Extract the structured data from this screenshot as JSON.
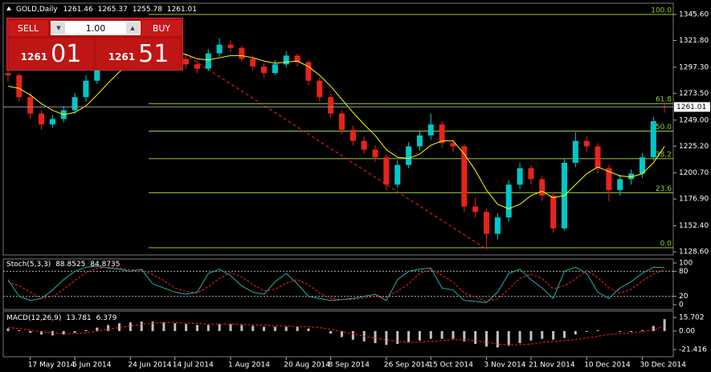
{
  "header": {
    "symbol": "GOLD,Daily"
  },
  "trade_panel": {
    "sell": "SELL",
    "buy": "BUY",
    "lots": "1.00",
    "bid": {
      "prefix": "1261",
      "digits": "01"
    },
    "ask": {
      "prefix": "1261",
      "digits": "51"
    }
  },
  "chart_data": {
    "type": "candlestick",
    "categories": [
      null,
      null,
      "17 May 2014",
      null,
      null,
      null,
      "5 Jun 2014",
      null,
      null,
      null,
      null,
      "24 Jun 2014",
      null,
      null,
      null,
      "14 Jul 2014",
      null,
      null,
      null,
      null,
      "1 Aug 2014",
      null,
      null,
      null,
      null,
      "20 Aug 2014",
      null,
      null,
      null,
      "8 Sep 2014",
      null,
      null,
      null,
      null,
      "26 Sep 2014",
      null,
      null,
      null,
      "15 Oct 2014",
      null,
      null,
      null,
      null,
      "3 Nov 2014",
      null,
      null,
      null,
      "21 Nov 2014",
      null,
      null,
      null,
      null,
      "10 Dec 2014",
      null,
      null,
      null,
      null,
      "30 Dec 2014",
      null,
      null
    ],
    "candles": [
      [
        1292,
        1296,
        1284,
        1290
      ],
      [
        1290,
        1292,
        1266,
        1270
      ],
      [
        1270,
        1274,
        1250,
        1255
      ],
      [
        1255,
        1258,
        1240,
        1245
      ],
      [
        1245,
        1254,
        1242,
        1250
      ],
      [
        1250,
        1262,
        1247,
        1258
      ],
      [
        1258,
        1274,
        1255,
        1270
      ],
      [
        1270,
        1290,
        1266,
        1285
      ],
      [
        1285,
        1304,
        1282,
        1300
      ],
      [
        1300,
        1314,
        1296,
        1310
      ],
      [
        1310,
        1320,
        1305,
        1315
      ],
      [
        1315,
        1322,
        1310,
        1318
      ],
      [
        1318,
        1326,
        1312,
        1322
      ],
      [
        1322,
        1324,
        1311,
        1315
      ],
      [
        1315,
        1318,
        1305,
        1310
      ],
      [
        1310,
        1314,
        1301,
        1305
      ],
      [
        1305,
        1308,
        1296,
        1300
      ],
      [
        1300,
        1303,
        1292,
        1296
      ],
      [
        1296,
        1314,
        1294,
        1310
      ],
      [
        1310,
        1324,
        1307,
        1318
      ],
      [
        1318,
        1322,
        1311,
        1315
      ],
      [
        1315,
        1317,
        1302,
        1305
      ],
      [
        1305,
        1308,
        1294,
        1298
      ],
      [
        1298,
        1301,
        1288,
        1292
      ],
      [
        1292,
        1304,
        1290,
        1300
      ],
      [
        1300,
        1312,
        1297,
        1308
      ],
      [
        1308,
        1310,
        1298,
        1302
      ],
      [
        1302,
        1304,
        1281,
        1285
      ],
      [
        1285,
        1288,
        1266,
        1270
      ],
      [
        1270,
        1273,
        1251,
        1255
      ],
      [
        1255,
        1258,
        1236,
        1240
      ],
      [
        1240,
        1244,
        1226,
        1230
      ],
      [
        1230,
        1234,
        1218,
        1222
      ],
      [
        1222,
        1226,
        1211,
        1215
      ],
      [
        1215,
        1218,
        1185,
        1190
      ],
      [
        1190,
        1212,
        1187,
        1208
      ],
      [
        1208,
        1229,
        1205,
        1225
      ],
      [
        1225,
        1240,
        1221,
        1235
      ],
      [
        1235,
        1255,
        1231,
        1245
      ],
      [
        1245,
        1248,
        1224,
        1228
      ],
      [
        1228,
        1232,
        1220,
        1225
      ],
      [
        1225,
        1227,
        1165,
        1170
      ],
      [
        1170,
        1178,
        1160,
        1165
      ],
      [
        1165,
        1168,
        1131,
        1145
      ],
      [
        1145,
        1164,
        1140,
        1160
      ],
      [
        1160,
        1194,
        1156,
        1190
      ],
      [
        1190,
        1210,
        1186,
        1205
      ],
      [
        1205,
        1208,
        1190,
        1195
      ],
      [
        1195,
        1198,
        1175,
        1180
      ],
      [
        1180,
        1183,
        1146,
        1150
      ],
      [
        1150,
        1214,
        1148,
        1210
      ],
      [
        1210,
        1238,
        1206,
        1230
      ],
      [
        1230,
        1234,
        1220,
        1225
      ],
      [
        1225,
        1228,
        1200,
        1205
      ],
      [
        1205,
        1208,
        1175,
        1185
      ],
      [
        1185,
        1199,
        1180,
        1195
      ],
      [
        1195,
        1204,
        1190,
        1200
      ],
      [
        1200,
        1219,
        1196,
        1215
      ],
      [
        1215,
        1252,
        1212,
        1248
      ],
      [
        1261.46,
        1265.37,
        1255.78,
        1261.01
      ]
    ],
    "ma": [
      1280,
      1278,
      1272,
      1264,
      1258,
      1254,
      1256,
      1262,
      1272,
      1283,
      1293,
      1302,
      1310,
      1314,
      1314,
      1312,
      1309,
      1305,
      1304,
      1306,
      1308,
      1308,
      1306,
      1303,
      1301,
      1302,
      1303,
      1298,
      1290,
      1280,
      1268,
      1256,
      1245,
      1235,
      1222,
      1215,
      1214,
      1218,
      1226,
      1230,
      1230,
      1218,
      1203,
      1185,
      1172,
      1168,
      1172,
      1180,
      1184,
      1178,
      1180,
      1190,
      1200,
      1206,
      1202,
      1198,
      1197,
      1200,
      1210,
      1225
    ],
    "up_color": "#00c8c8",
    "down_color": "#e8231c",
    "ma_color": "#ffff00",
    "ylim": [
      1125.7,
      1355.9
    ],
    "yticks": [
      {
        "value": 1345.6,
        "label": "1345.60"
      },
      {
        "value": 1321.8,
        "label": "1321.80"
      },
      {
        "value": 1297.3,
        "label": "1297.30"
      },
      {
        "value": 1273.5,
        "label": "1273.50"
      },
      {
        "value": 1249,
        "label": "1249.00"
      },
      {
        "value": 1225.2,
        "label": "1225.20"
      },
      {
        "value": 1200.7,
        "label": "1200.70"
      },
      {
        "value": 1176.9,
        "label": "1176.90"
      },
      {
        "value": 1152.4,
        "label": "1152.40"
      },
      {
        "value": 1128.6,
        "label": "1128.60"
      }
    ],
    "fib_color": "#9acd32",
    "fib": [
      {
        "label": "100.0",
        "price": 1345.6
      },
      {
        "label": "61.8",
        "price": 1264.1
      },
      {
        "label": "50.0",
        "price": 1239.0
      },
      {
        "label": "38.2",
        "price": 1213.8
      },
      {
        "label": "23.6",
        "price": 1182.6
      },
      {
        "label": "0.0",
        "price": 1132.3
      }
    ],
    "trendline": {
      "start_price": 1315,
      "end_price": 1131,
      "color": "#ff2020"
    },
    "stoch": {
      "title": "Stoch(5,3,3)",
      "ylim": [
        -11.5,
        109.6
      ],
      "yticks": [
        100,
        80,
        20,
        0
      ],
      "levels": [
        80,
        20
      ],
      "k_color": "#20b2aa",
      "d_color": "#ff2020",
      "k": [
        60,
        20,
        10,
        15,
        35,
        60,
        80,
        90,
        92,
        88,
        85,
        80,
        85,
        50,
        40,
        30,
        25,
        30,
        75,
        85,
        70,
        45,
        30,
        25,
        55,
        75,
        50,
        20,
        15,
        10,
        12,
        15,
        20,
        25,
        10,
        60,
        80,
        85,
        88,
        40,
        35,
        10,
        8,
        5,
        30,
        75,
        85,
        60,
        40,
        15,
        80,
        90,
        75,
        30,
        15,
        40,
        55,
        75,
        90,
        88.8525
      ],
      "d": [
        55,
        45,
        30,
        15,
        20,
        37,
        58,
        77,
        87,
        90,
        88,
        84,
        83,
        72,
        58,
        40,
        32,
        28,
        43,
        63,
        77,
        67,
        48,
        33,
        37,
        52,
        60,
        48,
        28,
        15,
        12,
        12,
        16,
        20,
        18,
        32,
        50,
        75,
        84,
        71,
        54,
        28,
        18,
        8,
        14,
        37,
        63,
        73,
        62,
        38,
        45,
        62,
        82,
        65,
        40,
        28,
        37,
        57,
        73,
        84.8735
      ]
    },
    "macd": {
      "title": "MACD(12,26,9)",
      "ylim": [
        -29.77,
        23.13
      ],
      "yticks": [
        15.702,
        {
          "value": 0,
          "label": "0.00"
        },
        -21.416
      ],
      "hist_color": "#c0c0c0",
      "signal_color": "#ff2020",
      "hist": [
        3,
        1,
        -2,
        -4,
        -5,
        -4,
        -2,
        1,
        4,
        7,
        9,
        10,
        11,
        11,
        10,
        9,
        8,
        7,
        7,
        8,
        8,
        7,
        6,
        5,
        5,
        5,
        5,
        3,
        0,
        -3,
        -7,
        -10,
        -12,
        -14,
        -16,
        -15,
        -13,
        -11,
        -9,
        -9,
        -9,
        -12,
        -15,
        -18,
        -19,
        -17,
        -14,
        -11,
        -9,
        -10,
        -8,
        -4,
        -1,
        1,
        0,
        -1,
        -1,
        1,
        6,
        13.781
      ],
      "signal": [
        4,
        3,
        1,
        -1,
        -2,
        -3,
        -3,
        -2,
        0,
        2,
        4,
        6,
        8,
        9,
        10,
        10,
        9,
        9,
        8,
        8,
        8,
        8,
        7,
        7,
        6,
        6,
        5,
        5,
        4,
        2,
        -1,
        -3,
        -6,
        -8,
        -10,
        -12,
        -13,
        -13,
        -12,
        -11,
        -10,
        -10,
        -11,
        -13,
        -15,
        -16,
        -16,
        -15,
        -13,
        -12,
        -11,
        -10,
        -8,
        -6,
        -4,
        -3,
        -2,
        -1,
        1,
        6.379
      ]
    }
  }
}
